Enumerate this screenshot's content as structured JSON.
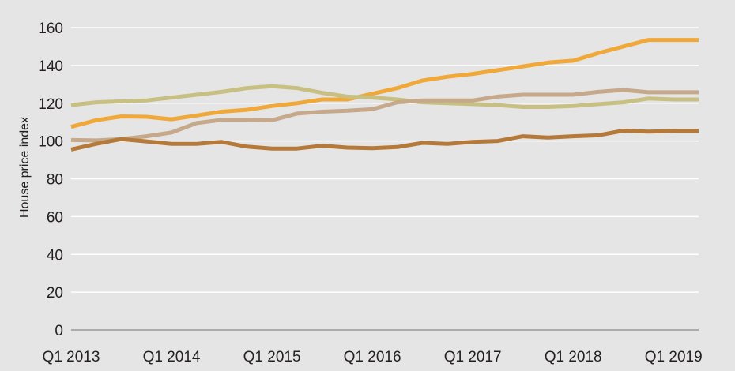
{
  "chart_data": {
    "type": "line",
    "ylabel": "House price index",
    "xlabel": "",
    "ylim": [
      0,
      160
    ],
    "yticks": [
      0,
      20,
      40,
      60,
      80,
      100,
      120,
      140,
      160
    ],
    "x_tick_labels": [
      "Q1 2013",
      "Q1 2014",
      "Q1 2015",
      "Q1 2016",
      "Q1 2017",
      "Q1 2018",
      "Q1 2019"
    ],
    "grid": "horizontal",
    "legend": "none",
    "x": [
      "Q1 2013",
      "Q2 2013",
      "Q3 2013",
      "Q4 2013",
      "Q1 2014",
      "Q2 2014",
      "Q3 2014",
      "Q4 2014",
      "Q1 2015",
      "Q2 2015",
      "Q3 2015",
      "Q4 2015",
      "Q1 2016",
      "Q2 2016",
      "Q3 2016",
      "Q4 2016",
      "Q1 2017",
      "Q2 2017",
      "Q3 2017",
      "Q4 2017",
      "Q1 2018",
      "Q2 2018",
      "Q3 2018",
      "Q4 2018",
      "Q1 2019",
      "Q2 2019"
    ],
    "series": [
      {
        "color": "#f0a839",
        "values": [
          107.5,
          111,
          113,
          112.8,
          111.5,
          113.5,
          115.5,
          116.5,
          118.5,
          120,
          122,
          122,
          125,
          128,
          132,
          134,
          135.5,
          137.5,
          139.5,
          141.5,
          142.5,
          146.5,
          150,
          153.5,
          153.5,
          153.5
        ]
      },
      {
        "color": "#c8c083",
        "values": [
          119,
          120.5,
          121,
          121.5,
          123,
          124.5,
          126,
          128,
          129,
          128,
          125.5,
          123.5,
          123,
          122,
          120.5,
          120,
          119.5,
          119,
          118,
          118,
          118.5,
          119.5,
          120.5,
          122.5,
          122,
          122
        ]
      },
      {
        "color": "#c6a88a",
        "values": [
          100.5,
          100.3,
          101,
          102.5,
          104.5,
          109.5,
          111.2,
          111.2,
          111,
          114.5,
          115.5,
          116,
          116.8,
          120.5,
          121.5,
          121.5,
          121.5,
          123.5,
          124.5,
          124.5,
          124.5,
          126,
          127,
          125.8,
          125.8,
          125.8
        ]
      },
      {
        "color": "#b57a39",
        "values": [
          95.5,
          98.5,
          101,
          99.8,
          98.5,
          98.5,
          99.5,
          97,
          96,
          96,
          97.5,
          96.5,
          96.2,
          96.8,
          99,
          98.5,
          99.5,
          100,
          102.5,
          101.8,
          102.5,
          103,
          105.5,
          105,
          105.3,
          105.3
        ]
      }
    ]
  }
}
